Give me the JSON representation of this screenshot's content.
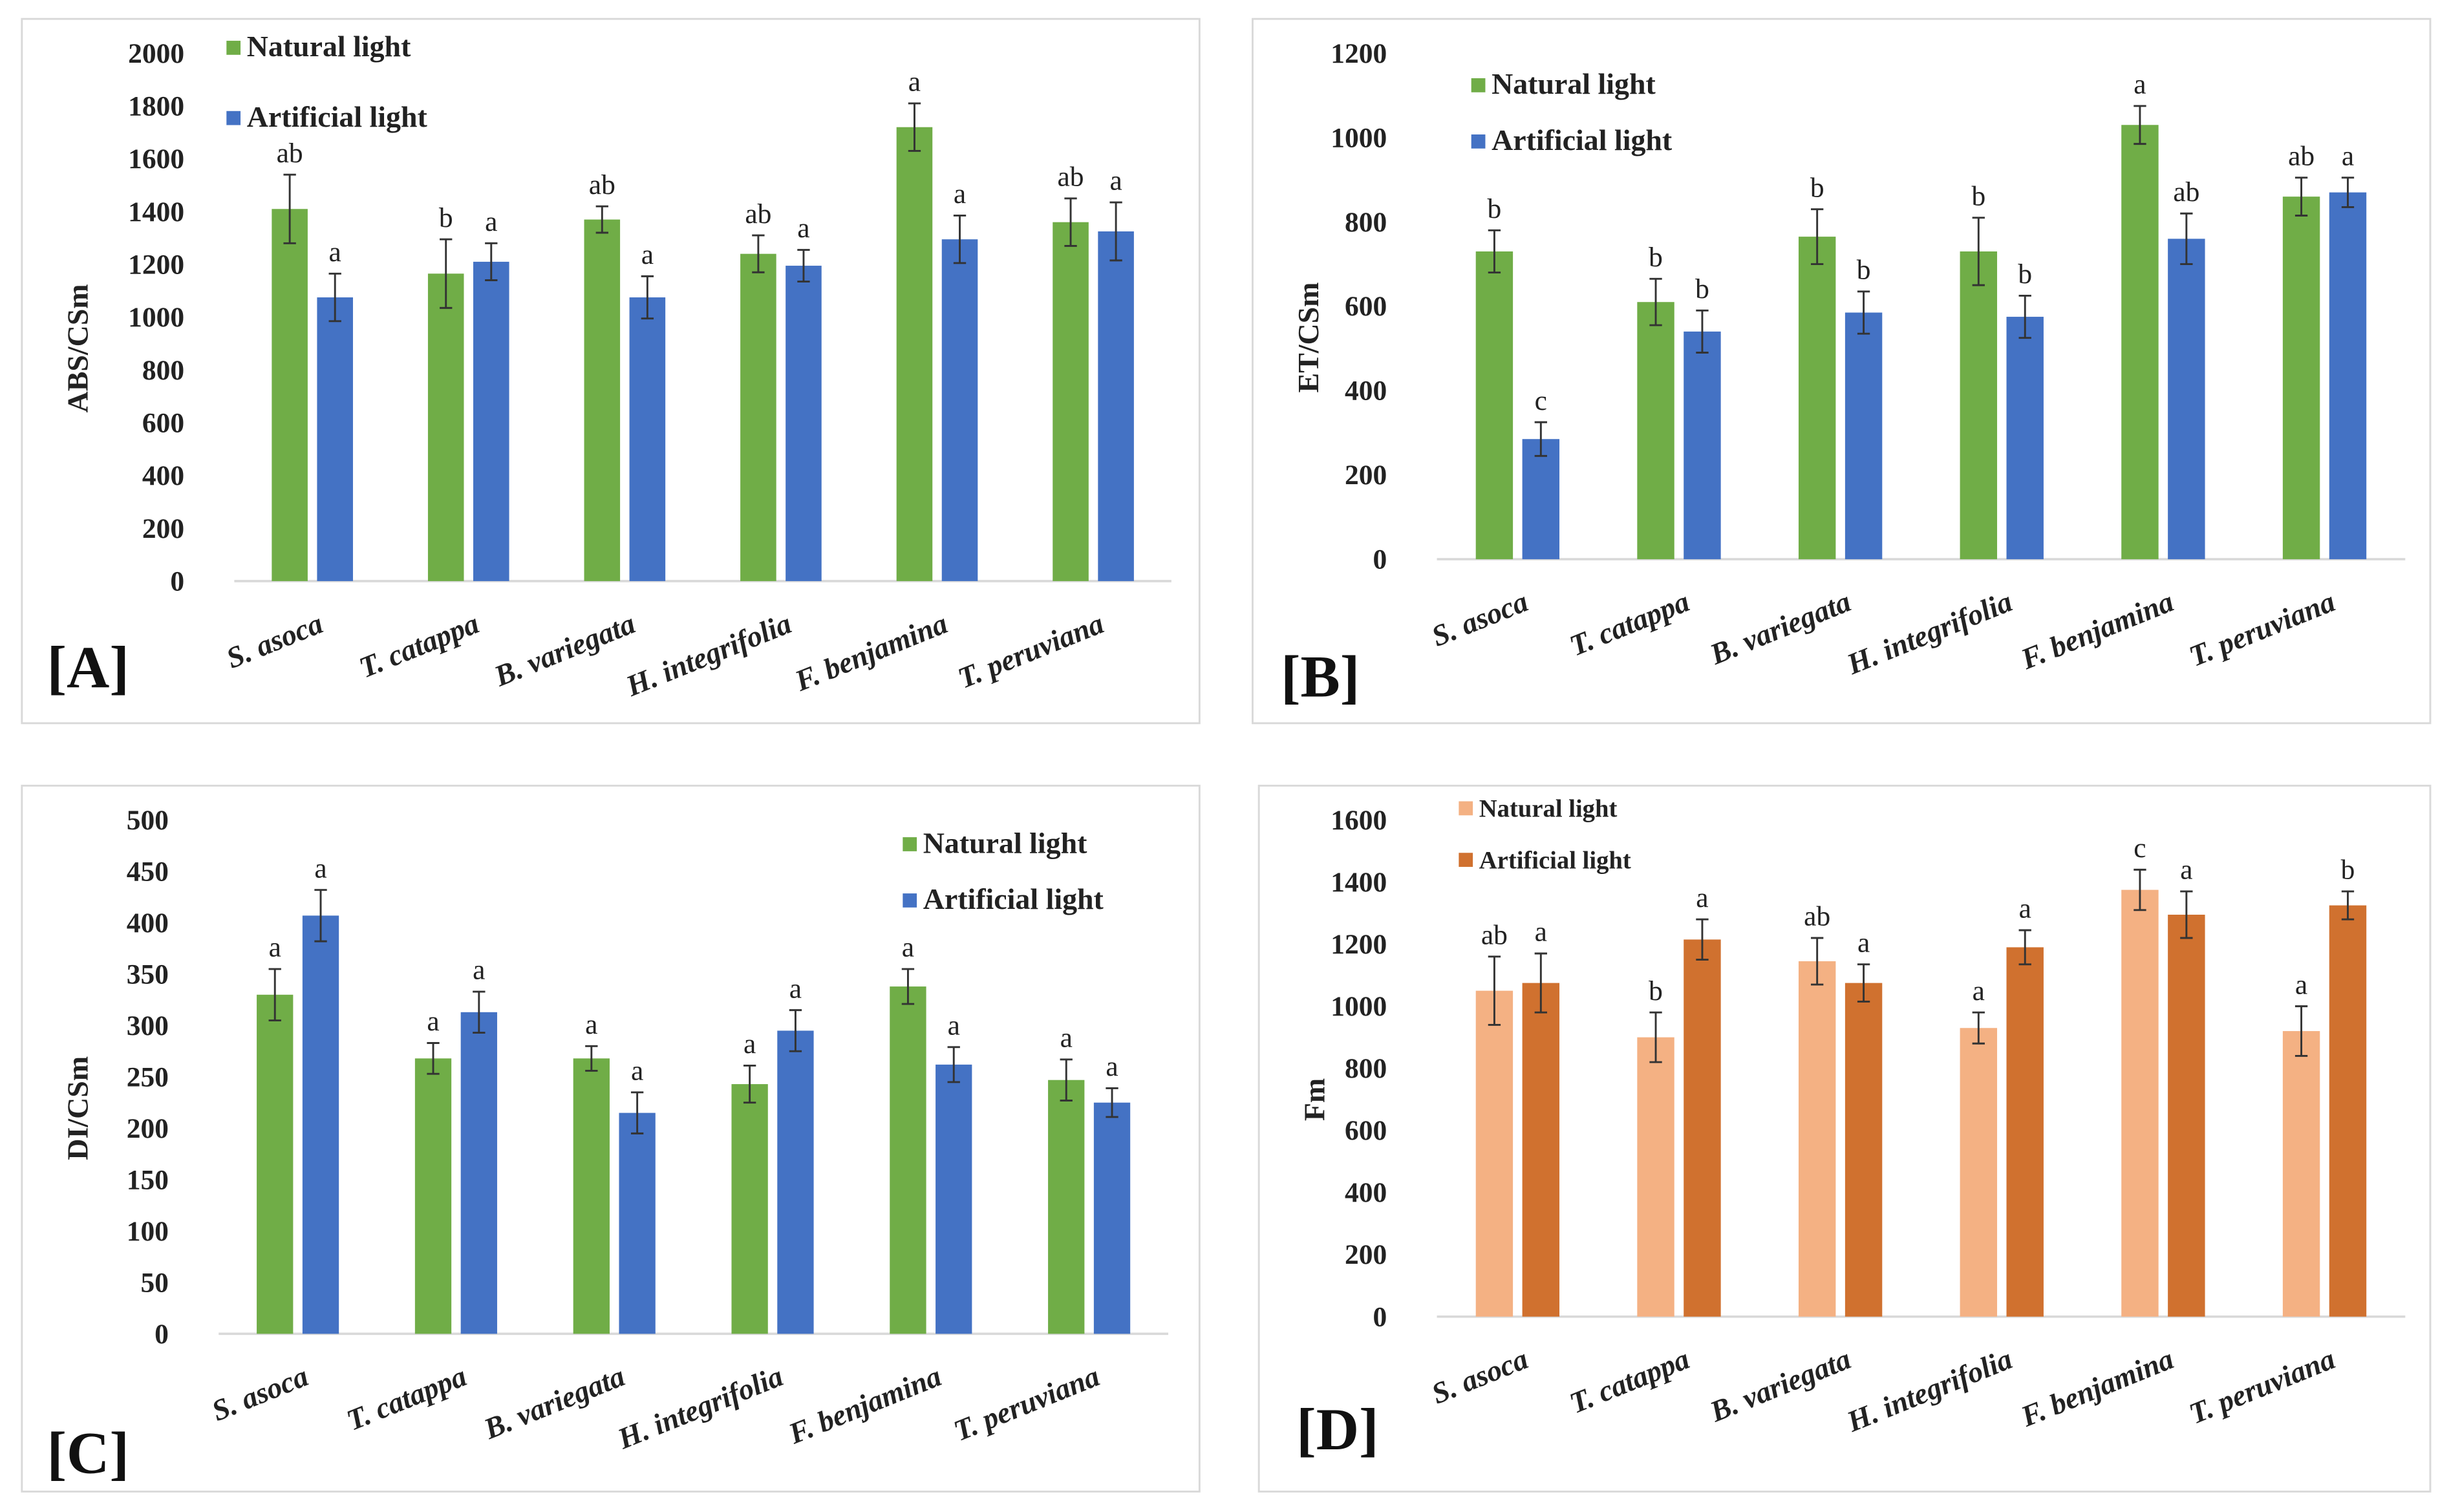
{
  "chart_data": [
    {
      "panel": "[A]",
      "type": "bar",
      "ylabel": "ABS/CSm",
      "ylim": [
        0,
        2000
      ],
      "yticks": [
        "0",
        "200",
        "400",
        "600",
        "800",
        "1000",
        "1200",
        "1400",
        "1600",
        "1800",
        "2000"
      ],
      "categories": [
        "S. asoca",
        "T. catappa",
        "B. variegata",
        "H. integrifolia",
        "F. benjamina",
        "T. peruviana"
      ],
      "legend_position": "top-left",
      "series": [
        {
          "name": "Natural light",
          "color": "#70ad47",
          "values": [
            1410,
            1165,
            1370,
            1240,
            1720,
            1360
          ],
          "errors": [
            130,
            130,
            50,
            70,
            90,
            90
          ],
          "letters": [
            "ab",
            "b",
            "ab",
            "ab",
            "a",
            "ab"
          ]
        },
        {
          "name": "Artificial light",
          "color": "#4472c4",
          "values": [
            1075,
            1210,
            1075,
            1195,
            1295,
            1325
          ],
          "errors": [
            90,
            70,
            80,
            60,
            90,
            110
          ],
          "letters": [
            "a",
            "a",
            "a",
            "a",
            "a",
            "a"
          ]
        }
      ]
    },
    {
      "panel": "[B]",
      "type": "bar",
      "ylabel": "ET/CSm",
      "ylim": [
        0,
        1200
      ],
      "yticks": [
        "0",
        "200",
        "400",
        "600",
        "800",
        "1000",
        "1200"
      ],
      "categories": [
        "S. asoca",
        "T. catappa",
        "B. variegata",
        "H. integrifolia",
        "F. benjamina",
        "T. peruviana"
      ],
      "legend_position": "top-left",
      "series": [
        {
          "name": "Natural light",
          "color": "#70ad47",
          "values": [
            730,
            610,
            765,
            730,
            1030,
            860
          ],
          "errors": [
            50,
            55,
            65,
            80,
            45,
            45
          ],
          "letters": [
            "b",
            "b",
            "b",
            "b",
            "a",
            "ab"
          ]
        },
        {
          "name": "Artificial light",
          "color": "#4472c4",
          "values": [
            285,
            540,
            585,
            575,
            760,
            870
          ],
          "errors": [
            40,
            50,
            50,
            50,
            60,
            35
          ],
          "letters": [
            "c",
            "b",
            "b",
            "b",
            "ab",
            "a"
          ]
        }
      ]
    },
    {
      "panel": "[C]",
      "type": "bar",
      "ylabel": "DI/CSm",
      "ylim": [
        0,
        500
      ],
      "yticks": [
        "0",
        "50",
        "100",
        "150",
        "200",
        "250",
        "300",
        "350",
        "400",
        "450",
        "500"
      ],
      "categories": [
        "S. asoca",
        "T. catappa",
        "B. variegata",
        "H. integrifolia",
        "F. benjamina",
        "T. peruviana"
      ],
      "legend_position": "top-right",
      "series": [
        {
          "name": "Natural light",
          "color": "#70ad47",
          "values": [
            330,
            268,
            268,
            243,
            338,
            247
          ],
          "errors": [
            25,
            15,
            12,
            18,
            17,
            20
          ],
          "letters": [
            "a",
            "a",
            "a",
            "a",
            "a",
            "a"
          ]
        },
        {
          "name": "Artificial light",
          "color": "#4472c4",
          "values": [
            407,
            313,
            215,
            295,
            262,
            225
          ],
          "errors": [
            25,
            20,
            20,
            20,
            17,
            14
          ],
          "letters": [
            "a",
            "a",
            "a",
            "a",
            "a",
            "a"
          ]
        }
      ]
    },
    {
      "panel": "[D]",
      "type": "bar",
      "ylabel": "Fm",
      "ylim": [
        0,
        1600
      ],
      "yticks": [
        "0",
        "200",
        "400",
        "600",
        "800",
        "1000",
        "1200",
        "1400",
        "1600"
      ],
      "categories": [
        "S. asoca",
        "T. catappa",
        "B. variegata",
        "H. integrifolia",
        "F. benjamina",
        "T. peruviana"
      ],
      "legend_position": "top-left",
      "series": [
        {
          "name": "Natural light",
          "color": "#f4b183",
          "values": [
            1050,
            900,
            1145,
            930,
            1375,
            920
          ],
          "errors": [
            110,
            80,
            75,
            50,
            65,
            80
          ],
          "letters": [
            "ab",
            "b",
            "ab",
            "a",
            "c",
            "a"
          ]
        },
        {
          "name": "Artificial light",
          "color": "#d0712f",
          "values": [
            1075,
            1215,
            1075,
            1190,
            1295,
            1325
          ],
          "errors": [
            95,
            65,
            60,
            55,
            75,
            45
          ],
          "letters": [
            "a",
            "a",
            "a",
            "a",
            "a",
            "b"
          ]
        }
      ]
    }
  ]
}
